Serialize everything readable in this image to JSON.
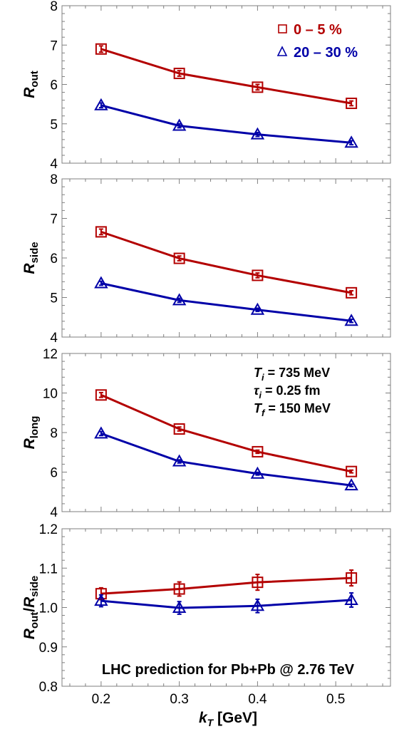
{
  "colors": {
    "central": "#b30000",
    "peripheral": "#0000a8",
    "axis": "#7f7f7f",
    "text": "#000000"
  },
  "shared_x": {
    "label_main": "k",
    "label_sub": "T",
    "label_unit": " [GeV]",
    "lim": [
      0.15,
      0.57
    ],
    "ticks": [
      0.2,
      0.3,
      0.4,
      0.5
    ],
    "tick_labels": [
      "0.2",
      "0.3",
      "0.4",
      "0.5"
    ]
  },
  "legend": {
    "entries": [
      {
        "marker": "square",
        "label": "0 – 5 %",
        "color_key": "central"
      },
      {
        "marker": "triangle",
        "label": "20 – 30 %",
        "color_key": "peripheral"
      }
    ]
  },
  "params": {
    "lines": [
      {
        "sym": "T",
        "sub": "i",
        "rest": " = 735 MeV"
      },
      {
        "sym": "τ",
        "sub": "i",
        "rest": " = 0.25 fm"
      },
      {
        "sym": "T",
        "sub": "f",
        "rest": " = 150 MeV"
      }
    ]
  },
  "caption": "LHC prediction for Pb+Pb @ 2.76 TeV",
  "chart_data": [
    {
      "type": "line",
      "ylabel_main": "R",
      "ylabel_sub": "out",
      "ylim": [
        4,
        8
      ],
      "yticks": [
        4,
        5,
        6,
        7,
        8
      ],
      "ytick_labels": [
        "4",
        "5",
        "6",
        "7",
        "8"
      ],
      "x": [
        0.2,
        0.3,
        0.4,
        0.52
      ],
      "series": [
        {
          "name": "0 – 5 %",
          "marker": "square",
          "color_key": "central",
          "values": [
            6.9,
            6.28,
            5.93,
            5.52
          ],
          "errors": [
            0.08,
            0.07,
            0.07,
            0.06
          ]
        },
        {
          "name": "20 – 30 %",
          "marker": "triangle",
          "color_key": "peripheral",
          "values": [
            5.47,
            4.95,
            4.73,
            4.52
          ],
          "errors": [
            0.06,
            0.05,
            0.05,
            0.05
          ]
        }
      ]
    },
    {
      "type": "line",
      "ylabel_main": "R",
      "ylabel_sub": "side",
      "ylim": [
        4,
        8
      ],
      "yticks": [
        4,
        5,
        6,
        7,
        8
      ],
      "ytick_labels": [
        "4",
        "5",
        "6",
        "7",
        "8"
      ],
      "x": [
        0.2,
        0.3,
        0.4,
        0.52
      ],
      "series": [
        {
          "name": "0 – 5 %",
          "marker": "square",
          "color_key": "central",
          "values": [
            6.66,
            5.99,
            5.56,
            5.12
          ],
          "errors": [
            0.07,
            0.06,
            0.06,
            0.05
          ]
        },
        {
          "name": "20 – 30 %",
          "marker": "triangle",
          "color_key": "peripheral",
          "values": [
            5.36,
            4.93,
            4.69,
            4.41
          ],
          "errors": [
            0.05,
            0.05,
            0.04,
            0.04
          ]
        }
      ]
    },
    {
      "type": "line",
      "ylabel_main": "R",
      "ylabel_sub": "long",
      "ylim": [
        4,
        12
      ],
      "yticks": [
        4,
        6,
        8,
        10,
        12
      ],
      "ytick_labels": [
        "4",
        "6",
        "8",
        "10",
        "12"
      ],
      "x": [
        0.2,
        0.3,
        0.4,
        0.52
      ],
      "series": [
        {
          "name": "0 – 5 %",
          "marker": "square",
          "color_key": "central",
          "values": [
            9.9,
            8.18,
            7.03,
            6.03
          ],
          "errors": [
            0.12,
            0.1,
            0.08,
            0.07
          ]
        },
        {
          "name": "20 – 30 %",
          "marker": "triangle",
          "color_key": "peripheral",
          "values": [
            7.95,
            6.54,
            5.92,
            5.33
          ],
          "errors": [
            0.1,
            0.08,
            0.07,
            0.06
          ]
        }
      ]
    },
    {
      "type": "line",
      "ylabel_main": "R",
      "ylabel_sub": "out",
      "ylabel_mid": "/",
      "ylabel_main2": "R",
      "ylabel_sub2": "side",
      "ylim": [
        0.8,
        1.2
      ],
      "yticks": [
        0.8,
        0.9,
        1.0,
        1.1,
        1.2
      ],
      "ytick_labels": [
        "0.8",
        "0.9",
        "1.0",
        "1.1",
        "1.2"
      ],
      "x": [
        0.2,
        0.3,
        0.4,
        0.52
      ],
      "series": [
        {
          "name": "0 – 5 %",
          "marker": "square",
          "color_key": "central",
          "values": [
            1.035,
            1.047,
            1.064,
            1.075
          ],
          "errors": [
            0.015,
            0.018,
            0.02,
            0.02
          ]
        },
        {
          "name": "20 – 30 %",
          "marker": "triangle",
          "color_key": "peripheral",
          "values": [
            1.017,
            0.999,
            1.004,
            1.019
          ],
          "errors": [
            0.015,
            0.016,
            0.017,
            0.018
          ]
        }
      ]
    }
  ]
}
